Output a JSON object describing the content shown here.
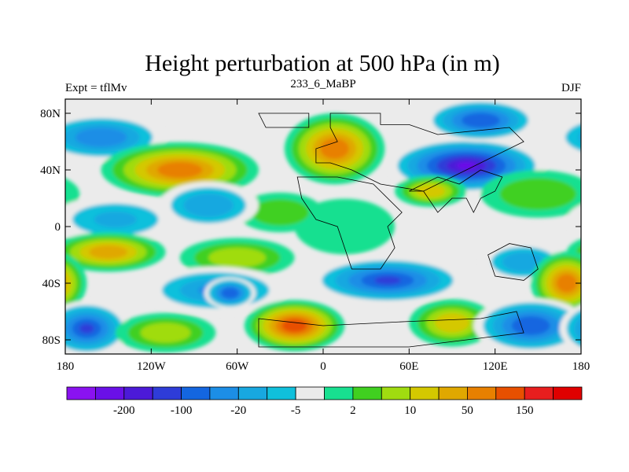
{
  "chart_data": {
    "type": "heatmap",
    "title": "Height perturbation at 500 hPa (in m)",
    "left_label": "Expt = tflMv",
    "center_label": "233_6_MaBP",
    "right_label": "DJF",
    "units": "m",
    "xlim": [
      -180,
      180
    ],
    "ylim": [
      -90,
      90
    ],
    "x_ticks": [
      {
        "value": -180,
        "label": "180"
      },
      {
        "value": -120,
        "label": "120W"
      },
      {
        "value": -60,
        "label": "60W"
      },
      {
        "value": 0,
        "label": "0"
      },
      {
        "value": 60,
        "label": "60E"
      },
      {
        "value": 120,
        "label": "120E"
      },
      {
        "value": 180,
        "label": "180"
      }
    ],
    "y_ticks": [
      {
        "value": 80,
        "label": "80N"
      },
      {
        "value": 40,
        "label": "40N"
      },
      {
        "value": 0,
        "label": "0"
      },
      {
        "value": -40,
        "label": "40S"
      },
      {
        "value": -80,
        "label": "80S"
      }
    ],
    "colorbar": {
      "colors": [
        "#8a12f0",
        "#6a10e8",
        "#4c1ad8",
        "#2e3cd8",
        "#1466e0",
        "#1c8ee6",
        "#18a8e0",
        "#10c0dc",
        "#ebebeb",
        "#18e090",
        "#40d020",
        "#a0dc10",
        "#d4c800",
        "#e0a800",
        "#e88000",
        "#e85000",
        "#e81e1e",
        "#e00000"
      ],
      "tick_labels": [
        {
          "after_box": 2,
          "label": "-200"
        },
        {
          "after_box": 4,
          "label": "-100"
        },
        {
          "after_box": 6,
          "label": "-20"
        },
        {
          "after_box": 8,
          "label": "-5"
        },
        {
          "after_box": 10,
          "label": "2"
        },
        {
          "after_box": 12,
          "label": "10"
        },
        {
          "after_box": 14,
          "label": "50"
        },
        {
          "after_box": 16,
          "label": "150"
        }
      ]
    },
    "field_color_index": {
      "-17": 0,
      "-14": 1,
      "-12": 2,
      "-10": 3,
      "-8": 4,
      "-6": 5,
      "-4": 6,
      "-2": 7,
      "0": 8,
      "2": 9,
      "4": 10,
      "6": 11,
      "8": 12,
      "10": 13,
      "12": 14,
      "14": 15,
      "16": 16
    },
    "anomaly_centers": [
      {
        "lon": -155,
        "lat": 63,
        "value": -7,
        "rx": 45,
        "ry": 12
      },
      {
        "lon": -100,
        "lat": 40,
        "value": 12,
        "rx": 55,
        "ry": 14
      },
      {
        "lon": 8,
        "lat": 55,
        "value": 12,
        "rx": 35,
        "ry": 18
      },
      {
        "lon": 100,
        "lat": 43,
        "value": -14,
        "rx": 55,
        "ry": 14
      },
      {
        "lon": 110,
        "lat": 75,
        "value": -9,
        "rx": 40,
        "ry": 11
      },
      {
        "lon": 150,
        "lat": 23,
        "value": 4,
        "rx": 40,
        "ry": 12
      },
      {
        "lon": 75,
        "lat": 25,
        "value": 8,
        "rx": 25,
        "ry": 8
      },
      {
        "lon": 15,
        "lat": 0,
        "value": 2,
        "rx": 35,
        "ry": 14
      },
      {
        "lon": -30,
        "lat": 10,
        "value": 3,
        "rx": 30,
        "ry": 10
      },
      {
        "lon": -145,
        "lat": 5,
        "value": -4,
        "rx": 45,
        "ry": 12
      },
      {
        "lon": -80,
        "lat": 15,
        "value": -5,
        "rx": 35,
        "ry": 12
      },
      {
        "lon": -150,
        "lat": -18,
        "value": 9,
        "rx": 40,
        "ry": 10
      },
      {
        "lon": -60,
        "lat": -22,
        "value": 6,
        "rx": 40,
        "ry": 10
      },
      {
        "lon": -75,
        "lat": -45,
        "value": -6,
        "rx": 50,
        "ry": 12
      },
      {
        "lon": -65,
        "lat": -47,
        "value": -9,
        "rx": 18,
        "ry": 8
      },
      {
        "lon": 45,
        "lat": -38,
        "value": -10,
        "rx": 55,
        "ry": 12
      },
      {
        "lon": 140,
        "lat": -25,
        "value": -5,
        "rx": 30,
        "ry": 10
      },
      {
        "lon": 170,
        "lat": -40,
        "value": 12,
        "rx": 25,
        "ry": 16
      },
      {
        "lon": -20,
        "lat": -70,
        "value": 14,
        "rx": 35,
        "ry": 13
      },
      {
        "lon": 90,
        "lat": -68,
        "value": 8,
        "rx": 30,
        "ry": 12
      },
      {
        "lon": 145,
        "lat": -70,
        "value": -9,
        "rx": 40,
        "ry": 14
      },
      {
        "lon": -165,
        "lat": -72,
        "value": -10,
        "rx": 30,
        "ry": 14
      },
      {
        "lon": -110,
        "lat": -75,
        "value": 6,
        "rx": 35,
        "ry": 10
      }
    ],
    "land_outlines": [
      [
        [
          -45,
          80
        ],
        [
          -10,
          80
        ],
        [
          -10,
          70
        ],
        [
          -40,
          70
        ],
        [
          -45,
          80
        ]
      ],
      [
        [
          5,
          80
        ],
        [
          40,
          80
        ],
        [
          40,
          72
        ],
        [
          60,
          72
        ],
        [
          80,
          65
        ],
        [
          130,
          70
        ],
        [
          140,
          60
        ],
        [
          110,
          45
        ],
        [
          90,
          35
        ],
        [
          70,
          25
        ],
        [
          40,
          30
        ],
        [
          20,
          40
        ],
        [
          5,
          45
        ],
        [
          -5,
          45
        ],
        [
          -5,
          55
        ],
        [
          10,
          60
        ],
        [
          5,
          70
        ],
        [
          5,
          80
        ]
      ],
      [
        [
          -18,
          35
        ],
        [
          -15,
          20
        ],
        [
          -5,
          5
        ],
        [
          10,
          0
        ],
        [
          15,
          -15
        ],
        [
          20,
          -30
        ],
        [
          40,
          -30
        ],
        [
          50,
          -15
        ],
        [
          45,
          0
        ],
        [
          55,
          10
        ],
        [
          35,
          30
        ],
        [
          10,
          35
        ],
        [
          -18,
          35
        ]
      ],
      [
        [
          60,
          25
        ],
        [
          70,
          25
        ],
        [
          80,
          10
        ],
        [
          90,
          20
        ],
        [
          100,
          20
        ],
        [
          105,
          10
        ],
        [
          110,
          20
        ],
        [
          120,
          25
        ],
        [
          125,
          35
        ],
        [
          110,
          40
        ],
        [
          95,
          30
        ],
        [
          80,
          35
        ],
        [
          60,
          25
        ]
      ],
      [
        [
          115,
          -20
        ],
        [
          130,
          -12
        ],
        [
          145,
          -15
        ],
        [
          150,
          -30
        ],
        [
          140,
          -38
        ],
        [
          120,
          -35
        ],
        [
          115,
          -20
        ]
      ],
      [
        [
          -45,
          -65
        ],
        [
          0,
          -70
        ],
        [
          60,
          -67
        ],
        [
          110,
          -65
        ],
        [
          135,
          -60
        ],
        [
          140,
          -75
        ],
        [
          60,
          -85
        ],
        [
          -45,
          -85
        ],
        [
          -45,
          -65
        ]
      ]
    ]
  }
}
